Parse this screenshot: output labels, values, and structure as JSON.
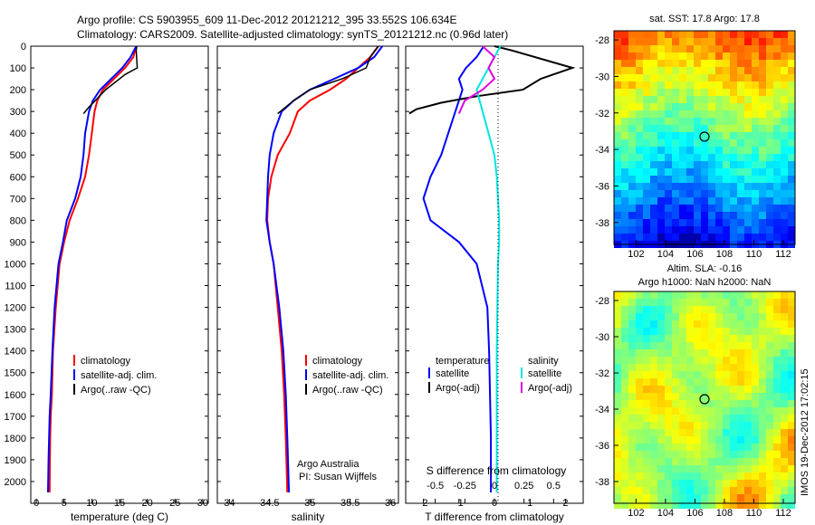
{
  "header": {
    "line1": "Argo profile: CS 5903955_609 11-Dec-2012 20121212_395 33.552S 106.634E",
    "line2": "Climatology: CARS2009. Satellite-adjusted climatology: synTS_20121212.nc (0.96d later)"
  },
  "colors": {
    "climatology": "#ff0000",
    "satellite": "#0000ff",
    "argo": "#000000",
    "satellite_sal": "#00e5e5",
    "argo_sal": "#e000e0"
  },
  "panels": {
    "temperature": {
      "xlabel": "temperature (deg C)",
      "xticks": [
        "0",
        "5",
        "10",
        "15",
        "20",
        "25",
        "30"
      ],
      "legend": [
        "climatology",
        "satellite-adj. clim.",
        "Argo(..raw -QC)"
      ]
    },
    "salinity": {
      "xlabel": "salinity",
      "xticks": [
        "34",
        "34.5",
        "35",
        "35.5",
        "36"
      ],
      "legend": [
        "climatology",
        "satellite-adj. clim.",
        "Argo(..raw -QC)"
      ],
      "credit1": "Argo Australia",
      "credit2": "PI: Susan Wijffels"
    },
    "difference": {
      "xlabel": "T difference from climatology",
      "top_label": "S difference from climatology",
      "xticks_T": [
        "-2",
        "-1",
        "0",
        "1",
        "2"
      ],
      "xticks_S": [
        "-0.5",
        "-0.25",
        "0",
        "0.25",
        "0.5"
      ],
      "legend_temp_title": "temperature",
      "legend_sal_title": "salinity",
      "legend_temp": [
        "satellite",
        "Argo(-adj)"
      ],
      "legend_sal": [
        "satellite",
        "Argo(-adj)"
      ]
    }
  },
  "depth_ticks": [
    "0",
    "100",
    "200",
    "300",
    "400",
    "500",
    "600",
    "700",
    "800",
    "900",
    "1000",
    "1100",
    "1200",
    "1300",
    "1400",
    "1500",
    "1600",
    "1700",
    "1800",
    "1900",
    "2000"
  ],
  "maps": {
    "sst": {
      "title": "sat. SST: 17.8 Argo: 17.8",
      "yticks": [
        "-28",
        "-30",
        "-32",
        "-34",
        "-36",
        "-38"
      ],
      "xticks": [
        "102",
        "104",
        "106",
        "108",
        "110",
        "112"
      ]
    },
    "sla": {
      "title1": "Altim. SLA: -0.16",
      "title2": "Argo h1000: NaN h2000: NaN",
      "yticks": [
        "-28",
        "-30",
        "-32",
        "-34",
        "-36",
        "-38"
      ],
      "xticks": [
        "102",
        "104",
        "106",
        "108",
        "110",
        "112"
      ]
    }
  },
  "side_stamp": "IMOS 19-Dec-2012 17:02:15",
  "chart_data": [
    {
      "type": "line",
      "xlabel": "temperature (deg C)",
      "ylabel": "",
      "xlim": [
        -1,
        31
      ],
      "ylim": [
        2050,
        0
      ],
      "series": [
        {
          "name": "climatology",
          "x": [
            18,
            17.5,
            16,
            14,
            12,
            11,
            10.5,
            10,
            9.5,
            8.8,
            7.5,
            6,
            5,
            4.2,
            3.5,
            3.0,
            2.8,
            2.6,
            2.5,
            2.45,
            2.4
          ],
          "y": [
            0,
            50,
            100,
            150,
            200,
            250,
            300,
            400,
            500,
            600,
            700,
            800,
            900,
            1000,
            1200,
            1400,
            1600,
            1700,
            1800,
            1900,
            2050
          ]
        },
        {
          "name": "satellite-adj. clim.",
          "x": [
            18,
            17,
            15.5,
            13.5,
            11.5,
            10.2,
            9.5,
            8.8,
            8.5,
            8,
            7,
            5.5,
            4.8,
            4,
            3.3,
            2.9,
            2.6,
            2.4,
            2.3,
            2.2,
            2.1
          ],
          "y": [
            0,
            50,
            100,
            150,
            200,
            250,
            300,
            400,
            500,
            600,
            700,
            800,
            900,
            1000,
            1200,
            1400,
            1600,
            1700,
            1800,
            1900,
            2050
          ]
        },
        {
          "name": "Argo(..raw -QC)",
          "x": [
            18.1,
            18,
            18.2,
            16,
            14,
            12.5,
            11,
            9.5,
            8.5
          ],
          "y": [
            0,
            20,
            100,
            130,
            170,
            200,
            240,
            280,
            310
          ]
        }
      ]
    },
    {
      "type": "line",
      "xlabel": "salinity",
      "ylabel": "",
      "xlim": [
        33.85,
        36.1
      ],
      "ylim": [
        2050,
        0
      ],
      "series": [
        {
          "name": "climatology",
          "x": [
            35.85,
            35.75,
            35.6,
            35.45,
            35.25,
            35.0,
            34.85,
            34.75,
            34.6,
            34.52,
            34.48,
            34.47,
            34.5,
            34.55,
            34.6,
            34.65,
            34.68,
            34.7,
            34.72
          ],
          "y": [
            0,
            50,
            100,
            150,
            200,
            250,
            300,
            400,
            500,
            600,
            700,
            800,
            900,
            1000,
            1200,
            1400,
            1600,
            1800,
            2050
          ]
        },
        {
          "name": "satellite-adj. clim.",
          "x": [
            35.9,
            35.8,
            35.6,
            35.3,
            35.0,
            34.8,
            34.65,
            34.55,
            34.5,
            34.48,
            34.47,
            34.46,
            34.5,
            34.55,
            34.62,
            34.67,
            34.7,
            34.72,
            34.74
          ],
          "y": [
            0,
            50,
            100,
            150,
            200,
            250,
            300,
            400,
            500,
            600,
            700,
            800,
            900,
            1000,
            1200,
            1400,
            1600,
            1800,
            2050
          ]
        },
        {
          "name": "Argo(..raw -QC)",
          "x": [
            35.85,
            35.75,
            35.7,
            35.4,
            35.0,
            34.8,
            34.6
          ],
          "y": [
            0,
            50,
            100,
            150,
            200,
            250,
            310
          ]
        }
      ]
    },
    {
      "type": "line",
      "xlabel": "T difference from climatology",
      "ylabel": "",
      "xlim": [
        -2.5,
        2.5
      ],
      "ylim": [
        2050,
        0
      ],
      "series": [
        {
          "name": "satellite",
          "x": [
            -0.3,
            -0.5,
            -0.8,
            -1.0,
            -0.9,
            -1.1,
            -1.3,
            -1.5,
            -1.8,
            -2.0,
            -1.8,
            -1.0,
            -0.5,
            -0.2,
            -0.15,
            -0.1,
            -0.1
          ],
          "y": [
            0,
            50,
            100,
            150,
            200,
            300,
            400,
            500,
            600,
            700,
            800,
            900,
            1000,
            1200,
            1400,
            1800,
            2050
          ]
        },
        {
          "name": "Argo(-adj)",
          "x": [
            0,
            0.5,
            2.2,
            1.3,
            0.8,
            -0.5,
            -1.5,
            -2.2,
            -2.4
          ],
          "y": [
            0,
            20,
            100,
            150,
            200,
            230,
            260,
            290,
            310
          ]
        }
      ]
    },
    {
      "type": "line",
      "xlabel": "S difference from climatology",
      "ylabel": "",
      "xlim": [
        -0.75,
        0.75
      ],
      "ylim": [
        2050,
        0
      ],
      "series": [
        {
          "name": "satellite",
          "x": [
            0.05,
            0,
            -0.05,
            -0.15,
            -0.1,
            -0.05,
            0,
            0.02,
            0.03,
            0.04,
            0.04,
            0.03,
            0.02,
            0.02,
            0.02
          ],
          "y": [
            0,
            50,
            100,
            200,
            300,
            400,
            500,
            600,
            700,
            800,
            900,
            1000,
            1400,
            1800,
            2050
          ]
        },
        {
          "name": "Argo(-adj)",
          "x": [
            -0.1,
            0,
            -0.05,
            0,
            -0.1,
            -0.25,
            -0.3
          ],
          "y": [
            0,
            50,
            100,
            150,
            200,
            250,
            310
          ]
        }
      ]
    }
  ]
}
